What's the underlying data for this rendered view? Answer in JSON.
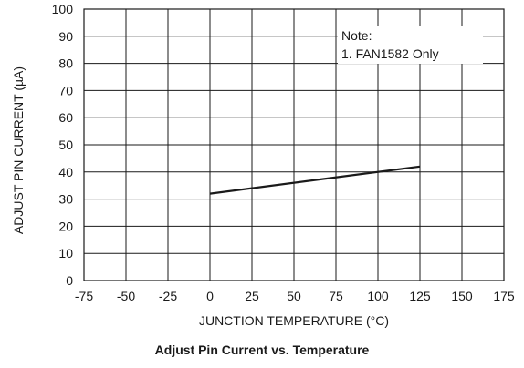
{
  "chart_data": {
    "type": "line",
    "caption": "Adjust Pin Current vs. Temperature",
    "xlabel": "JUNCTION TEMPERATURE (°C)",
    "ylabel": "ADJUST PIN CURRENT (µA)",
    "xlim": [
      -75,
      175
    ],
    "ylim": [
      0,
      100
    ],
    "xticks": [
      -75,
      -50,
      -25,
      0,
      25,
      50,
      75,
      100,
      125,
      150,
      175
    ],
    "yticks": [
      0,
      10,
      20,
      30,
      40,
      50,
      60,
      70,
      80,
      90,
      100
    ],
    "grid": true,
    "series": [
      {
        "x": [
          0,
          125
        ],
        "y": [
          32,
          42
        ],
        "color": "#1a1a1a"
      }
    ],
    "annotation": {
      "line1": "Note:",
      "line2": "1. FAN1582 Only"
    }
  }
}
